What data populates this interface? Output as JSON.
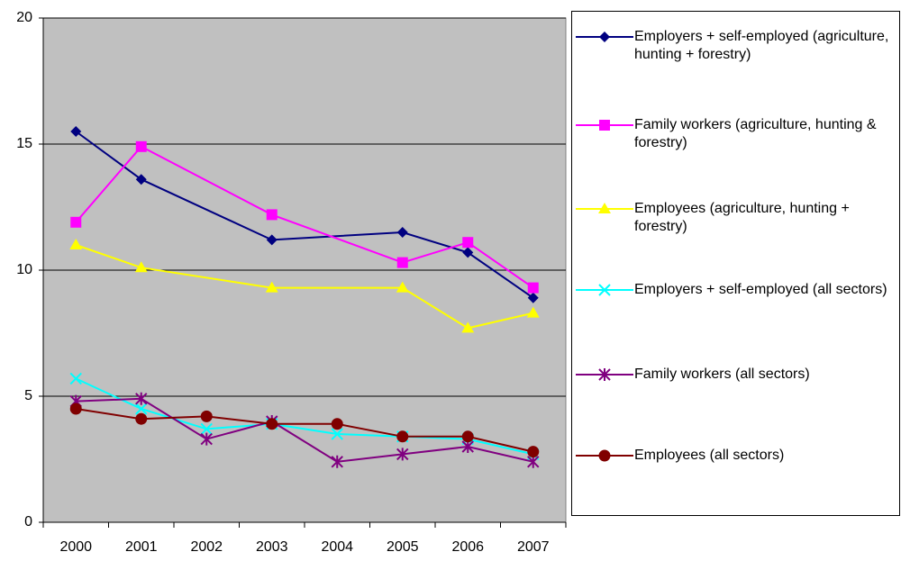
{
  "chart_data": {
    "type": "line",
    "categories": [
      "2000",
      "2001",
      "2002",
      "2003",
      "2004",
      "2005",
      "2006",
      "2007"
    ],
    "ylim": [
      0,
      20
    ],
    "yticks": [
      0,
      5,
      10,
      15,
      20
    ],
    "grid": true,
    "connect_gaps": true,
    "plot_background": "#c0c0c0",
    "legend": "right",
    "series": [
      {
        "name": "Employers + self-employed (agriculture, hunting + forestry)",
        "color": "#000080",
        "marker": "diamond",
        "values": [
          15.5,
          13.6,
          null,
          11.2,
          null,
          11.5,
          10.7,
          8.9
        ]
      },
      {
        "name": "Family workers (agriculture, hunting & forestry)",
        "color": "#ff00ff",
        "marker": "square",
        "values": [
          11.9,
          14.9,
          null,
          12.2,
          null,
          10.3,
          11.1,
          9.3
        ]
      },
      {
        "name": "Employees (agriculture, hunting + forestry)",
        "color": "#ffff00",
        "marker": "triangle",
        "values": [
          11.0,
          10.1,
          null,
          9.3,
          null,
          9.3,
          7.7,
          8.3
        ]
      },
      {
        "name": "Employers + self-employed (all sectors)",
        "color": "#00ffff",
        "marker": "x",
        "values": [
          5.7,
          4.5,
          3.7,
          3.9,
          3.5,
          3.4,
          3.3,
          2.7
        ]
      },
      {
        "name": "Family workers (all sectors)",
        "color": "#800080",
        "marker": "star",
        "values": [
          4.8,
          4.9,
          3.3,
          4.0,
          2.4,
          2.7,
          3.0,
          2.4
        ]
      },
      {
        "name": "Employees (all sectors)",
        "color": "#800000",
        "marker": "circle",
        "values": [
          4.5,
          4.1,
          4.2,
          3.9,
          3.9,
          3.4,
          3.4,
          2.8
        ]
      }
    ]
  }
}
